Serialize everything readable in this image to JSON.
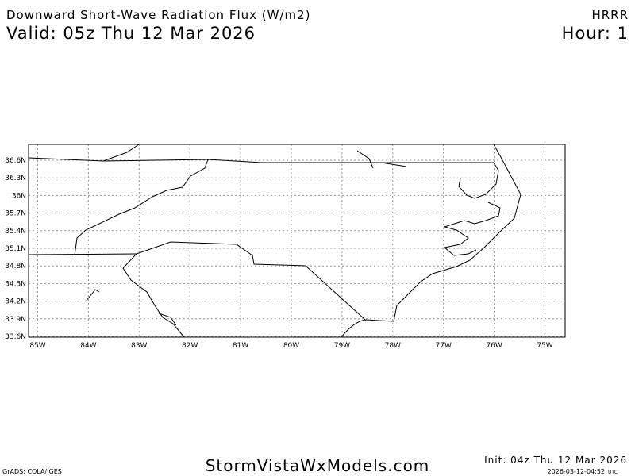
{
  "header": {
    "title": "Downward Short-Wave Radiation Flux (W/m2)",
    "valid": "Valid: 05z Thu 12 Mar 2026",
    "model": "HRRR",
    "hour": "Hour: 1"
  },
  "map": {
    "lon_labels": [
      "85W",
      "84W",
      "83W",
      "82W",
      "81W",
      "80W",
      "79W",
      "78W",
      "77W",
      "76W",
      "75W"
    ],
    "lat_labels": [
      "36.6N",
      "36.3N",
      "36N",
      "35.7N",
      "35.4N",
      "35.1N",
      "34.8N",
      "34.5N",
      "34.2N",
      "33.9N",
      "33.6N"
    ]
  },
  "footer": {
    "grads": "GrADS: COLA/IGES",
    "site": "StormVistaWxModels.com",
    "init": "Init: 04z Thu 12 Mar 2026",
    "stamp": "2026-03-12-04:52",
    "utc": "UTC"
  }
}
